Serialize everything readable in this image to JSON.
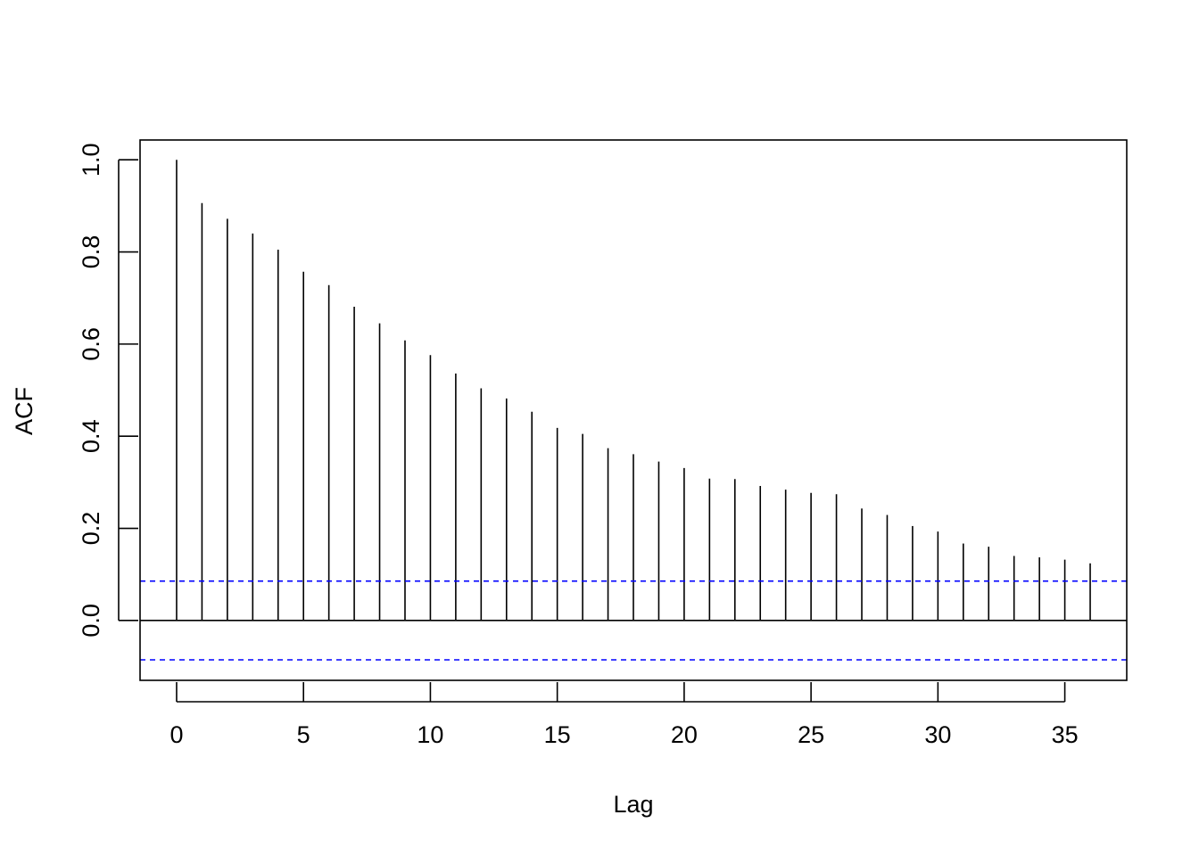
{
  "chart_data": {
    "type": "bar",
    "title": "",
    "xlabel": "Lag",
    "ylabel": "ACF",
    "xlim": [
      -1.44,
      37.44
    ],
    "ylim": [
      -0.13,
      1.043
    ],
    "x_ticks": [
      0,
      5,
      10,
      15,
      20,
      25,
      30,
      35
    ],
    "x_tick_labels": [
      "0",
      "5",
      "10",
      "15",
      "20",
      "25",
      "30",
      "35"
    ],
    "y_ticks": [
      0.0,
      0.2,
      0.4,
      0.6,
      0.8,
      1.0
    ],
    "y_tick_labels": [
      "0.0",
      "0.2",
      "0.4",
      "0.6",
      "0.8",
      "1.0"
    ],
    "grid": false,
    "lags": [
      0,
      1,
      2,
      3,
      4,
      5,
      6,
      7,
      8,
      9,
      10,
      11,
      12,
      13,
      14,
      15,
      16,
      17,
      18,
      19,
      20,
      21,
      22,
      23,
      24,
      25,
      26,
      27,
      28,
      29,
      30,
      31,
      32,
      33,
      34,
      35,
      36
    ],
    "acf": [
      1.0,
      0.906,
      0.872,
      0.84,
      0.805,
      0.757,
      0.728,
      0.681,
      0.645,
      0.608,
      0.576,
      0.536,
      0.504,
      0.482,
      0.453,
      0.418,
      0.405,
      0.374,
      0.361,
      0.345,
      0.331,
      0.308,
      0.307,
      0.292,
      0.284,
      0.277,
      0.274,
      0.243,
      0.229,
      0.205,
      0.193,
      0.167,
      0.16,
      0.14,
      0.137,
      0.132,
      0.124
    ],
    "confidence_bound": 0.0855,
    "colors": {
      "bars": "#000000",
      "confidence_lines": "#0000ff",
      "zero_line": "#000000",
      "frame": "#000000"
    }
  }
}
